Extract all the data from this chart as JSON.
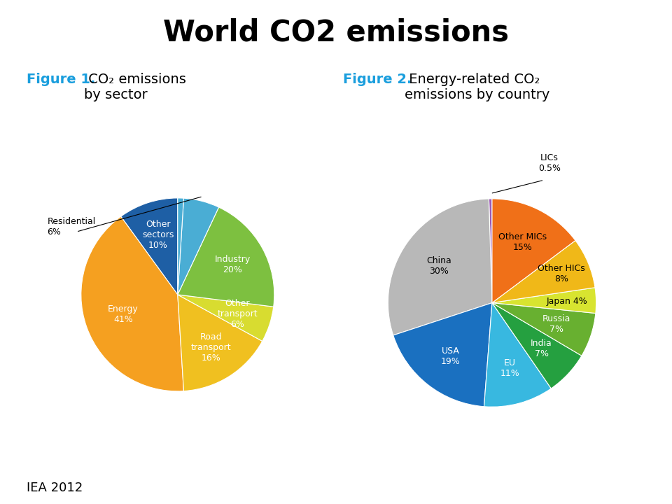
{
  "title": "World CO2 emissions",
  "title_fontsize": 30,
  "title_fontweight": "bold",
  "fig1_bold": "Figure 1.",
  "fig1_rest": " CO₂ emissions\nby sector",
  "fig2_bold": "Figure 2.",
  "fig2_rest": " Energy-related CO₂\nemissions by country",
  "fig_label_color": "#1a9edd",
  "fig_label_fontsize": 14,
  "footer": "IEA 2012",
  "footer_fontsize": 13,
  "background_color": "#ffffff",
  "pie1_sizes": [
    10,
    41,
    16,
    6,
    20,
    6,
    1
  ],
  "pie1_colors": [
    "#1e5fa5",
    "#f5a020",
    "#f0c020",
    "#d8dc30",
    "#7dc040",
    "#4aadd4",
    "#4aadd4"
  ],
  "pie1_startangle": 90,
  "pie2_sizes": [
    0.5,
    30,
    19,
    11,
    7,
    7,
    4,
    8,
    15
  ],
  "pie2_colors": [
    "#9b59b6",
    "#b8b8b8",
    "#1a70c0",
    "#38b8e0",
    "#25a040",
    "#68b030",
    "#d8e430",
    "#f0b818",
    "#f07018"
  ],
  "pie2_startangle": 90
}
